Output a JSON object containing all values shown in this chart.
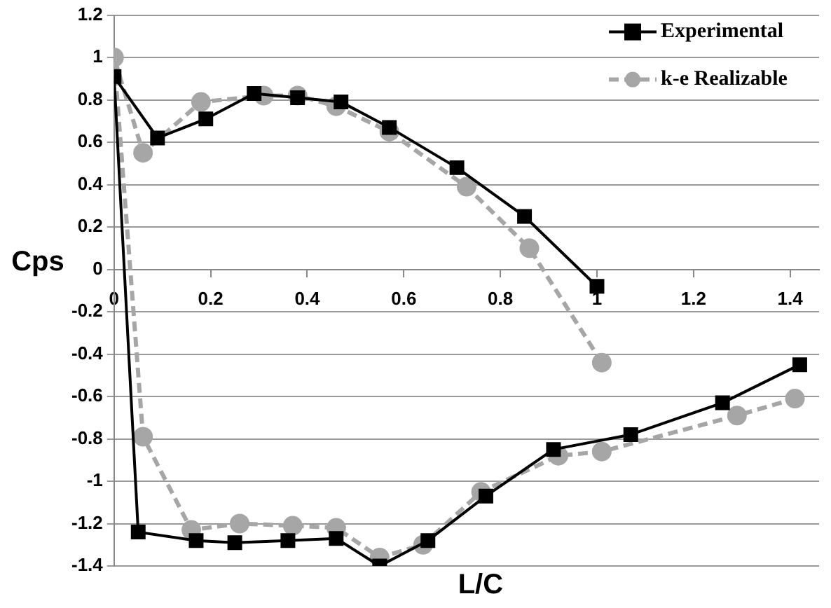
{
  "chart_data": {
    "type": "line",
    "xlabel": "L/C",
    "ylabel": "Cps",
    "xlim": [
      0,
      1.46
    ],
    "ylim": [
      -1.4,
      1.2
    ],
    "xticks": [
      0,
      0.2,
      0.4,
      0.6,
      0.8,
      1,
      1.2,
      1.4
    ],
    "yticks": [
      -1.4,
      -1.2,
      -1,
      -0.8,
      -0.6,
      -0.4,
      -0.2,
      0,
      0.2,
      0.4,
      0.6,
      0.8,
      1,
      1.2
    ],
    "grid": "y",
    "legend": "top right",
    "series": [
      {
        "name": "Experimental",
        "color": "#000000",
        "marker": "square",
        "line_style": "solid",
        "x": [
          1.0,
          0.85,
          0.71,
          0.57,
          0.47,
          0.38,
          0.29,
          0.19,
          0.09,
          0,
          0.05,
          0.17,
          0.25,
          0.36,
          0.46,
          0.55,
          0.65,
          0.77,
          0.91,
          1.07,
          1.26,
          1.42
        ],
        "values": [
          -0.08,
          0.25,
          0.48,
          0.67,
          0.79,
          0.81,
          0.83,
          0.71,
          0.62,
          0.91,
          -1.24,
          -1.28,
          -1.29,
          -1.28,
          -1.27,
          -1.4,
          -1.28,
          -1.07,
          -0.85,
          -0.78,
          -0.63,
          -0.45
        ]
      },
      {
        "name": "k-e Realizable",
        "color": "#a6a6a6",
        "marker": "circle",
        "line_style": "dashed",
        "x": [
          1.01,
          0.86,
          0.73,
          0.57,
          0.46,
          0.38,
          0.31,
          0.18,
          0.06,
          0,
          0.06,
          0.16,
          0.26,
          0.37,
          0.46,
          0.55,
          0.64,
          0.76,
          0.92,
          1.01,
          1.29,
          1.41
        ],
        "values": [
          -0.44,
          0.1,
          0.39,
          0.65,
          0.77,
          0.82,
          0.82,
          0.79,
          0.55,
          1.0,
          -0.79,
          -1.23,
          -1.2,
          -1.21,
          -1.22,
          -1.36,
          -1.3,
          -1.05,
          -0.88,
          -0.86,
          -0.69,
          -0.61
        ]
      }
    ]
  }
}
